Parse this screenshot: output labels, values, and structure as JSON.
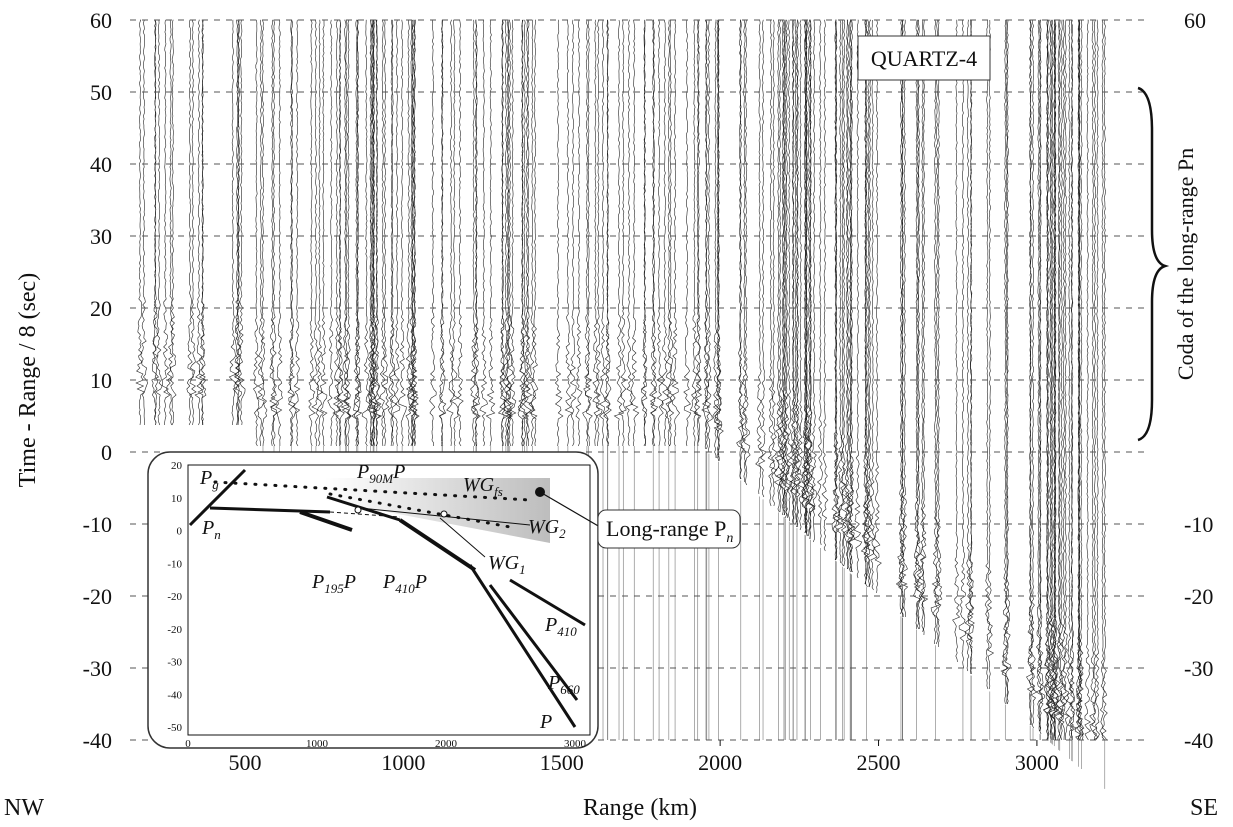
{
  "chart_data": {
    "type": "record-section",
    "title": "QUARTZ-4",
    "x_label": "Range (km)",
    "y_label": "Time - Range / 8 (sec)",
    "left_label": "NW",
    "right_label": "SE",
    "coda_label": "Coda of the long-range Pn",
    "xlim": [
      137,
      3357
    ],
    "xticks": [
      500,
      1000,
      1500,
      2000,
      2500,
      3000
    ],
    "ylim": [
      -40,
      60
    ],
    "yticks": [
      -40,
      -30,
      -20,
      -10,
      0,
      10,
      20,
      30,
      40,
      50,
      60
    ],
    "right_yticks": [
      -40,
      -30,
      -20,
      -10,
      60
    ],
    "grid": true,
    "callout": {
      "text": "Long-range P",
      "sub": "n"
    },
    "inset": {
      "ytick_labels": [
        "20",
        "10",
        "0",
        "-10",
        "-20",
        "-20",
        "-30",
        "-40",
        "-50"
      ],
      "xtick_labels": [
        "0",
        "1000",
        "2000",
        "3000"
      ],
      "phases": [
        {
          "text": "P",
          "sub": "g"
        },
        {
          "text": "P",
          "sub": "n"
        },
        {
          "text": "P",
          "sub": "195",
          "tail": "P"
        },
        {
          "text": "P",
          "sub": "410",
          "tail": "P"
        },
        {
          "text": "P",
          "sub": "90M",
          "tail": "P"
        },
        {
          "text": "WG",
          "sub": "fs"
        },
        {
          "text": "WG",
          "sub": "2"
        },
        {
          "text": "WG",
          "sub": "1"
        },
        {
          "text": "P",
          "sub": "410"
        },
        {
          "text": "P",
          "sub": "660"
        },
        {
          "text": "P"
        }
      ]
    }
  }
}
